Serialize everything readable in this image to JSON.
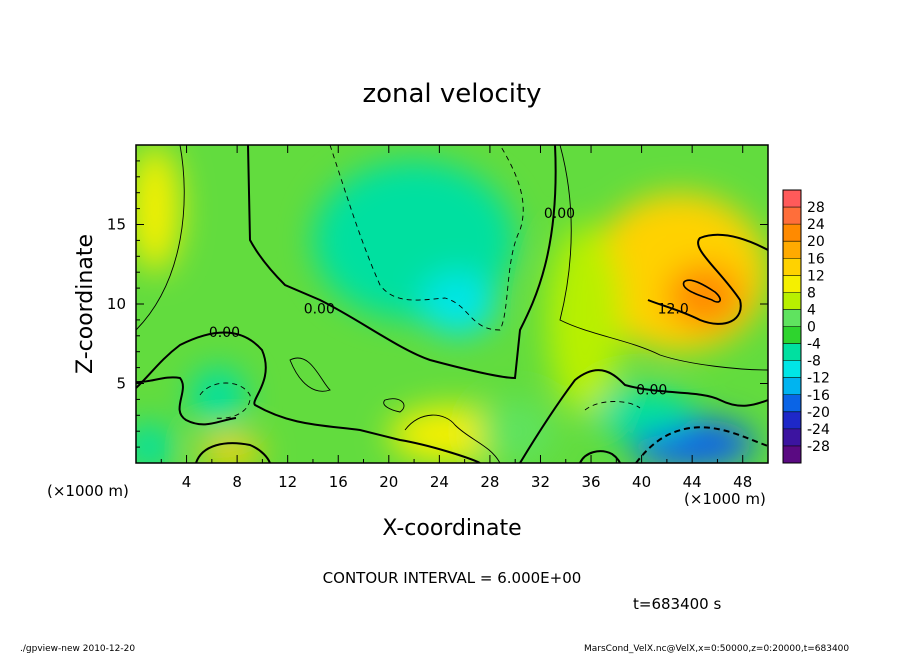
{
  "chart_data": {
    "type": "heatmap",
    "title": "zonal velocity",
    "xlabel": "X-coordinate",
    "ylabel": "Z-coordinate",
    "x_unit_label": "(×1000 m)",
    "y_unit_label": "(×1000 m)",
    "xlim": [
      0,
      50
    ],
    "ylim": [
      0,
      20
    ],
    "x_ticks": [
      4,
      8,
      12,
      16,
      20,
      24,
      28,
      32,
      36,
      40,
      44,
      48
    ],
    "y_ticks": [
      5,
      10,
      15
    ],
    "contour_interval_text": "CONTOUR INTERVAL = 6.000E+00",
    "contour_labels": [
      {
        "text": "0.00",
        "x": 7,
        "y": 8.1
      },
      {
        "text": "0.00",
        "x": 14.5,
        "y": 9.6
      },
      {
        "text": "0.00",
        "x": 33.5,
        "y": 15.6
      },
      {
        "text": "12.0",
        "x": 42.5,
        "y": 9.6
      },
      {
        "text": "0.00",
        "x": 40.8,
        "y": 4.5
      }
    ],
    "colorbar": {
      "levels": [
        28,
        24,
        20,
        16,
        12,
        8,
        4,
        0,
        -4,
        -8,
        -12,
        -16,
        -20,
        -24,
        -28
      ],
      "colors": [
        "#ff5a5a",
        "#ff6e3a",
        "#ff8a00",
        "#ffaa00",
        "#ffd200",
        "#f5f000",
        "#b8f000",
        "#5fe35f",
        "#2ed42e",
        "#00e0a0",
        "#00e6e6",
        "#00b4f0",
        "#0a64e6",
        "#1e28c8",
        "#3c14a0",
        "#5a0a82"
      ]
    },
    "field_blobs": [
      {
        "x": 22,
        "y": 14,
        "rx": 8,
        "ry": 5,
        "value": -8
      },
      {
        "x": 25.5,
        "y": 10,
        "rx": 3,
        "ry": 2,
        "value": -10
      },
      {
        "x": 6.5,
        "y": 4.2,
        "rx": 2.2,
        "ry": 1.8,
        "value": -8
      },
      {
        "x": 43,
        "y": 12,
        "rx": 7,
        "ry": 5,
        "value": 14
      },
      {
        "x": 45,
        "y": 10.5,
        "rx": 3,
        "ry": 2,
        "value": 20
      },
      {
        "x": 44,
        "y": 1.2,
        "rx": 5,
        "ry": 1.6,
        "value": -18
      },
      {
        "x": 40,
        "y": 3.2,
        "rx": 4,
        "ry": 1.5,
        "value": -6
      },
      {
        "x": 7.5,
        "y": 0.7,
        "rx": 2.5,
        "ry": 1,
        "value": 14
      },
      {
        "x": 1,
        "y": 1,
        "rx": 2,
        "ry": 1.5,
        "value": -8
      },
      {
        "x": 25,
        "y": 1.8,
        "rx": 5,
        "ry": 1.8,
        "value": 8
      },
      {
        "x": 1.5,
        "y": 16,
        "rx": 2,
        "ry": 4,
        "value": 8
      },
      {
        "x": 35.5,
        "y": 9,
        "rx": 3,
        "ry": 6,
        "value": 4
      },
      {
        "x": 30,
        "y": 2,
        "rx": 3,
        "ry": 2,
        "value": 3
      }
    ]
  },
  "annotations": {
    "time": "t=683400 s",
    "footer_left": "./gpview-new  2010-12-20",
    "footer_right": "MarsCond_VelX.nc@VelX,x=0:50000,z=0:20000,t=683400"
  }
}
